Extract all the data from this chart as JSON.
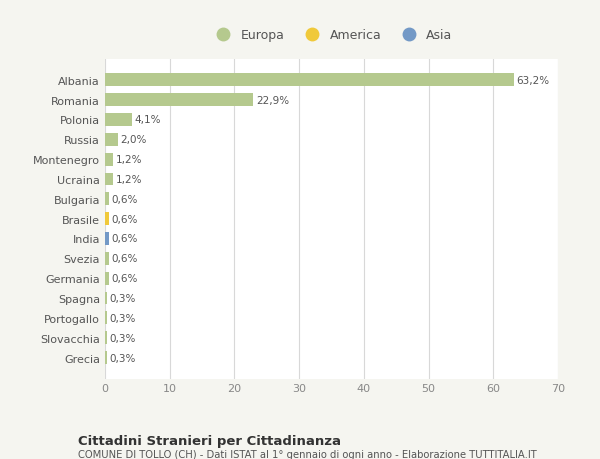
{
  "countries": [
    "Albania",
    "Romania",
    "Polonia",
    "Russia",
    "Montenegro",
    "Ucraina",
    "Bulgaria",
    "Brasile",
    "India",
    "Svezia",
    "Germania",
    "Spagna",
    "Portogallo",
    "Slovacchia",
    "Grecia"
  ],
  "values": [
    63.2,
    22.9,
    4.1,
    2.0,
    1.2,
    1.2,
    0.6,
    0.6,
    0.6,
    0.6,
    0.6,
    0.3,
    0.3,
    0.3,
    0.3
  ],
  "labels": [
    "63,2%",
    "22,9%",
    "4,1%",
    "2,0%",
    "1,2%",
    "1,2%",
    "0,6%",
    "0,6%",
    "0,6%",
    "0,6%",
    "0,6%",
    "0,3%",
    "0,3%",
    "0,3%",
    "0,3%"
  ],
  "colors": [
    "#b5c98e",
    "#b5c98e",
    "#b5c98e",
    "#b5c98e",
    "#b5c98e",
    "#b5c98e",
    "#b5c98e",
    "#f0c93a",
    "#7399c6",
    "#b5c98e",
    "#b5c98e",
    "#b5c98e",
    "#b5c98e",
    "#b5c98e",
    "#b5c98e"
  ],
  "legend_labels": [
    "Europa",
    "America",
    "Asia"
  ],
  "legend_colors": [
    "#b5c98e",
    "#f0c93a",
    "#7399c6"
  ],
  "xlim": [
    0,
    70
  ],
  "xticks": [
    0,
    10,
    20,
    30,
    40,
    50,
    60,
    70
  ],
  "title": "Cittadini Stranieri per Cittadinanza",
  "subtitle": "COMUNE DI TOLLO (CH) - Dati ISTAT al 1° gennaio di ogni anno - Elaborazione TUTTITALIA.IT",
  "bg_color": "#f5f5f0",
  "plot_bg_color": "#ffffff",
  "grid_color": "#d8d8d8",
  "label_color": "#888888",
  "text_color": "#555555"
}
